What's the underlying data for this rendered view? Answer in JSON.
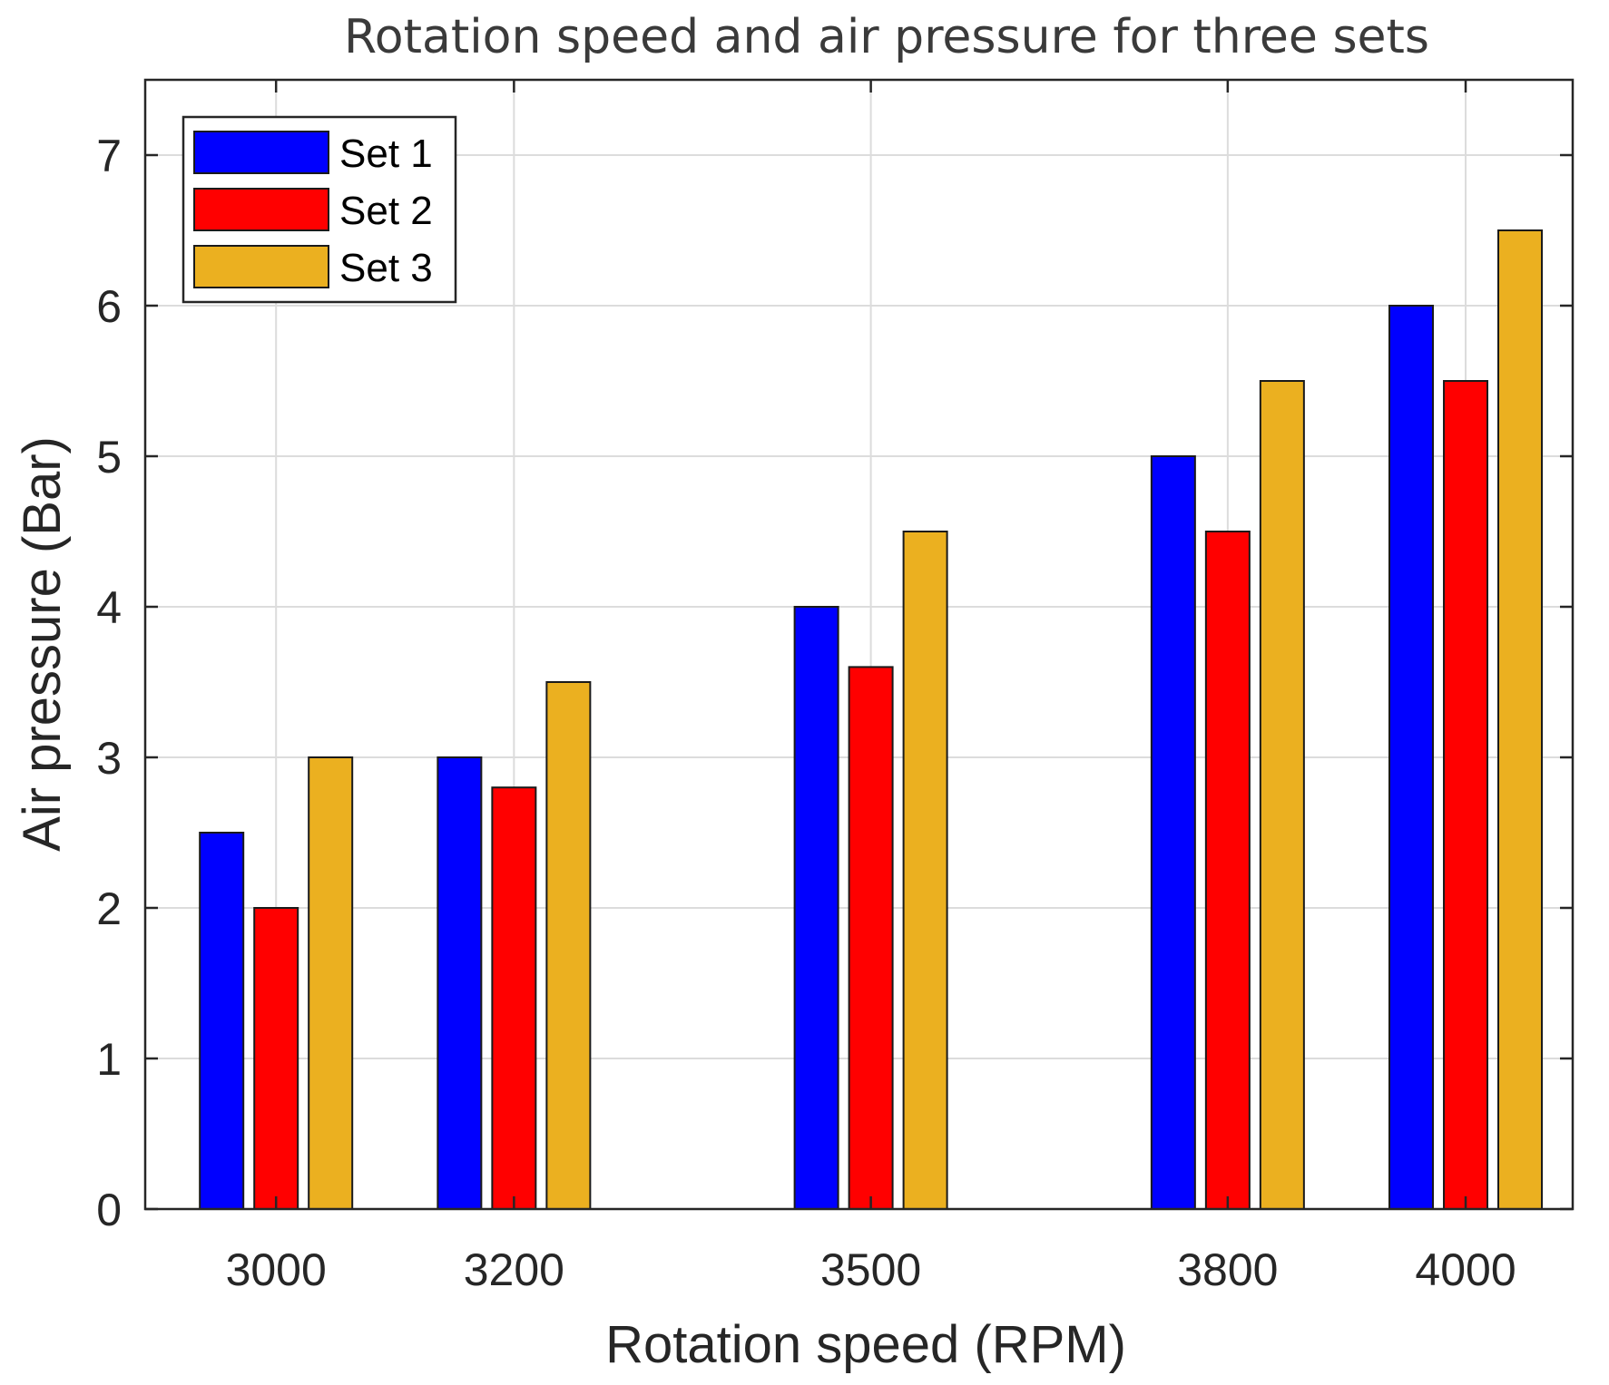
{
  "chart_data": {
    "type": "bar",
    "title": "Rotation speed and air pressure for three sets",
    "xlabel": "Rotation speed (RPM)",
    "ylabel": "Air pressure (Bar)",
    "categories": [
      "3000",
      "3200",
      "3500",
      "3800",
      "4000"
    ],
    "x": [
      3000,
      3200,
      3500,
      3800,
      4000
    ],
    "xlim": [
      2890,
      4090
    ],
    "ylim": [
      0,
      7.5
    ],
    "yticks": [
      0,
      1,
      2,
      3,
      4,
      5,
      6,
      7
    ],
    "grid": true,
    "legend_position": "top-left",
    "series": [
      {
        "name": "Set 1",
        "color": "#0000ff",
        "values": [
          2.5,
          3.0,
          4.0,
          5.0,
          6.0
        ]
      },
      {
        "name": "Set 2",
        "color": "#ff0000",
        "values": [
          2.0,
          2.8,
          3.6,
          4.5,
          5.5
        ]
      },
      {
        "name": "Set 3",
        "color": "#ebb020",
        "values": [
          3.0,
          3.5,
          4.5,
          5.5,
          6.5
        ]
      }
    ]
  }
}
